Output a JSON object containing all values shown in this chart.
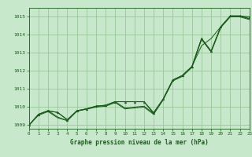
{
  "xlabel": "Graphe pression niveau de la mer (hPa)",
  "ylim": [
    1008.8,
    1015.5
  ],
  "xlim": [
    0,
    23
  ],
  "yticks": [
    1009,
    1010,
    1011,
    1012,
    1013,
    1014,
    1015
  ],
  "xticks": [
    0,
    1,
    2,
    3,
    4,
    5,
    6,
    7,
    8,
    9,
    10,
    11,
    12,
    13,
    14,
    15,
    16,
    17,
    18,
    19,
    20,
    21,
    22,
    23
  ],
  "bg_color": "#c8e8cc",
  "grid_color": "#90c090",
  "line_color": "#1a5c1a",
  "line_main": [
    1009.0,
    1009.6,
    1009.8,
    1009.7,
    1009.3,
    1009.8,
    1009.9,
    1010.05,
    1010.1,
    1010.3,
    1010.3,
    1010.3,
    1010.3,
    1009.65,
    1010.45,
    1011.5,
    1011.75,
    1012.25,
    1013.8,
    1013.1,
    1014.45,
    1015.05,
    1015.05,
    1015.0
  ],
  "line2": [
    1009.0,
    1009.6,
    1009.8,
    1009.7,
    1009.3,
    1009.8,
    1009.9,
    1010.05,
    1010.1,
    1010.3,
    1010.3,
    1010.3,
    1010.3,
    1009.7,
    1010.45,
    1011.5,
    1011.75,
    1012.25,
    1013.4,
    1013.8,
    1014.45,
    1015.05,
    1015.05,
    1014.9
  ],
  "line3": [
    1009.0,
    1009.6,
    1009.8,
    1009.45,
    1009.25,
    1009.78,
    1009.9,
    1010.05,
    1010.1,
    1010.3,
    1009.95,
    1010.0,
    1010.05,
    1009.65,
    1010.45,
    1011.5,
    1011.75,
    1012.25,
    1013.8,
    1013.1,
    1014.45,
    1015.05,
    1015.05,
    1014.9
  ],
  "line4": [
    1009.0,
    1009.55,
    1009.75,
    1009.4,
    1009.25,
    1009.78,
    1009.88,
    1010.0,
    1010.05,
    1010.25,
    1009.9,
    1009.95,
    1010.0,
    1009.6,
    1010.4,
    1011.45,
    1011.7,
    1012.2,
    1013.75,
    1013.05,
    1014.4,
    1015.0,
    1015.0,
    1014.85
  ]
}
